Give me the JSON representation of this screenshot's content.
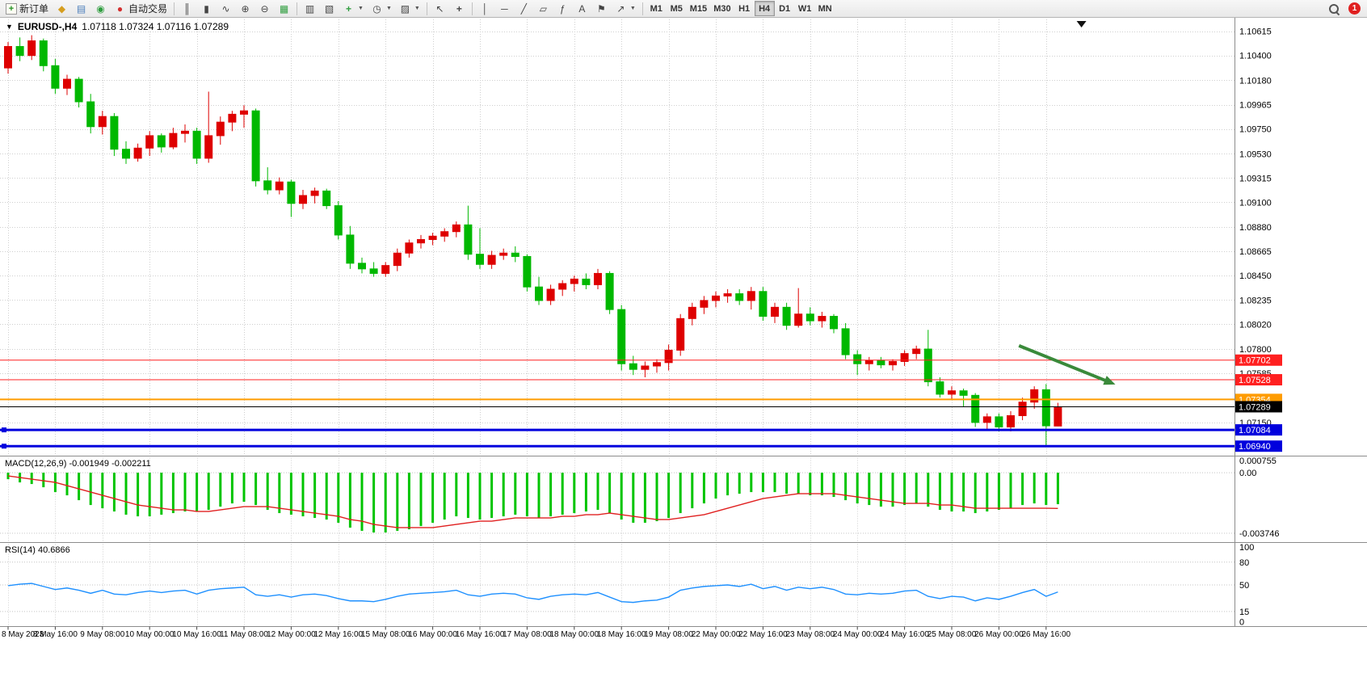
{
  "toolbar": {
    "new_order": "新订单",
    "auto_trading": "自动交易",
    "timeframes": [
      "M1",
      "M5",
      "M15",
      "M30",
      "H1",
      "H4",
      "D1",
      "W1",
      "MN"
    ],
    "active_timeframe": "H4",
    "notification_badge": "1"
  },
  "chart": {
    "symbol_title": "EURUSD-,H4",
    "ohlc_text": "1.07118 1.07324 1.07116 1.07289"
  },
  "indicators": {
    "macd_label": "MACD(12,26,9) -0.001949 -0.002211",
    "rsi_label": "RSI(14) 40.6866"
  },
  "chart_data": {
    "type": "candlestick",
    "symbol": "EURUSD-",
    "timeframe": "H4",
    "current_ohlc": {
      "open": "1.07118",
      "high": "1.07324",
      "low": "1.07116",
      "close": "1.07289"
    },
    "background": "#ffffff",
    "grid_color": "#cfcfcf",
    "up_color": "#de0000",
    "down_color": "#00b800",
    "price_range": {
      "top": 1.1072,
      "bottom": 1.0687
    },
    "y_axis_ticks": [
      "1.10615",
      "1.10400",
      "1.10180",
      "1.09965",
      "1.09750",
      "1.09530",
      "1.09315",
      "1.09100",
      "1.08880",
      "1.08665",
      "1.08450",
      "1.08235",
      "1.08020",
      "1.07800",
      "1.07585",
      "1.07150"
    ],
    "x_axis_labels": [
      "8 May 2023",
      "8 May 16:00",
      "9 May 08:00",
      "10 May 00:00",
      "10 May 16:00",
      "11 May 08:00",
      "12 May 00:00",
      "12 May 16:00",
      "15 May 08:00",
      "16 May 00:00",
      "16 May 16:00",
      "17 May 08:00",
      "18 May 00:00",
      "18 May 16:00",
      "19 May 08:00",
      "22 May 00:00",
      "22 May 16:00",
      "23 May 08:00",
      "24 May 00:00",
      "24 May 16:00",
      "25 May 08:00",
      "26 May 00:00",
      "26 May 16:00"
    ],
    "x_label_candle_step": 4,
    "candles": [
      [
        1.1029,
        1.1052,
        1.1024,
        1.1048
      ],
      [
        1.1048,
        1.1056,
        1.1035,
        1.104
      ],
      [
        1.104,
        1.1058,
        1.1036,
        1.1053
      ],
      [
        1.1053,
        1.1055,
        1.1026,
        1.1031
      ],
      [
        1.1031,
        1.1037,
        1.1006,
        1.1011
      ],
      [
        1.1011,
        1.1023,
        1.1005,
        1.1019
      ],
      [
        1.1019,
        1.1021,
        1.0994,
        1.0999
      ],
      [
        1.0999,
        1.1006,
        1.0971,
        1.0977
      ],
      [
        1.0977,
        1.0991,
        1.097,
        1.0986
      ],
      [
        1.0986,
        1.0989,
        1.0951,
        1.0957
      ],
      [
        1.0957,
        1.0964,
        1.0944,
        1.0949
      ],
      [
        1.0949,
        1.0962,
        1.0946,
        1.0958
      ],
      [
        1.0958,
        1.0973,
        1.0951,
        1.0969
      ],
      [
        1.0969,
        1.0971,
        1.0954,
        1.0959
      ],
      [
        1.0959,
        1.0976,
        1.0957,
        1.0971
      ],
      [
        1.0971,
        1.0979,
        1.0963,
        1.0973
      ],
      [
        1.0973,
        1.0976,
        1.0944,
        1.0949
      ],
      [
        1.0949,
        1.1008,
        1.0945,
        1.0969
      ],
      [
        1.0969,
        1.0986,
        1.0961,
        1.0981
      ],
      [
        1.0981,
        1.0991,
        1.0973,
        1.0988
      ],
      [
        1.0988,
        1.0996,
        1.0976,
        1.0991
      ],
      [
        1.0991,
        1.0993,
        1.0924,
        1.0929
      ],
      [
        1.0929,
        1.0941,
        1.0917,
        1.0921
      ],
      [
        1.0921,
        1.0932,
        1.0917,
        1.0928
      ],
      [
        1.0928,
        1.093,
        1.0897,
        1.0909
      ],
      [
        1.0909,
        1.0921,
        1.0904,
        1.0916
      ],
      [
        1.0916,
        1.0923,
        1.0909,
        1.092
      ],
      [
        1.092,
        1.0922,
        1.0904,
        1.0907
      ],
      [
        1.0907,
        1.0911,
        1.0877,
        1.0881
      ],
      [
        1.0881,
        1.0889,
        1.0851,
        1.0856
      ],
      [
        1.0856,
        1.0861,
        1.0847,
        1.0851
      ],
      [
        1.0851,
        1.0857,
        1.0844,
        1.0847
      ],
      [
        1.0847,
        1.0857,
        1.0844,
        1.0854
      ],
      [
        1.0854,
        1.0869,
        1.0849,
        1.0865
      ],
      [
        1.0865,
        1.0877,
        1.0861,
        1.0874
      ],
      [
        1.0874,
        1.0881,
        1.0869,
        1.0877
      ],
      [
        1.0877,
        1.0883,
        1.0872,
        1.088
      ],
      [
        1.088,
        1.0887,
        1.0875,
        1.0884
      ],
      [
        1.0884,
        1.0893,
        1.0879,
        1.089
      ],
      [
        1.089,
        1.0907,
        1.0859,
        1.0864
      ],
      [
        1.0864,
        1.0887,
        1.0851,
        1.0855
      ],
      [
        1.0855,
        1.0867,
        1.0851,
        1.0863
      ],
      [
        1.0863,
        1.0869,
        1.0859,
        1.0865
      ],
      [
        1.0865,
        1.0871,
        1.0857,
        1.0862
      ],
      [
        1.0862,
        1.0864,
        1.0831,
        1.0835
      ],
      [
        1.0835,
        1.0844,
        1.0819,
        1.0823
      ],
      [
        1.0823,
        1.0837,
        1.0819,
        1.0833
      ],
      [
        1.0833,
        1.0841,
        1.0827,
        1.0838
      ],
      [
        1.0838,
        1.0845,
        1.0831,
        1.0842
      ],
      [
        1.0842,
        1.0847,
        1.0833,
        1.0837
      ],
      [
        1.0837,
        1.0851,
        1.0833,
        1.0847
      ],
      [
        1.0847,
        1.0849,
        1.0811,
        1.0815
      ],
      [
        1.0815,
        1.0819,
        1.0761,
        1.0767
      ],
      [
        1.0767,
        1.0774,
        1.0757,
        1.0762
      ],
      [
        1.0762,
        1.0769,
        1.0755,
        1.0765
      ],
      [
        1.0765,
        1.0771,
        1.0759,
        1.0768
      ],
      [
        1.0768,
        1.0784,
        1.0761,
        1.0779
      ],
      [
        1.0779,
        1.0811,
        1.0774,
        1.0807
      ],
      [
        1.0807,
        1.0821,
        1.0801,
        1.0817
      ],
      [
        1.0817,
        1.0827,
        1.0811,
        1.0823
      ],
      [
        1.0823,
        1.0831,
        1.0817,
        1.0827
      ],
      [
        1.0827,
        1.0833,
        1.0821,
        1.0829
      ],
      [
        1.0829,
        1.0833,
        1.0819,
        1.0823
      ],
      [
        1.0823,
        1.0835,
        1.0815,
        1.0831
      ],
      [
        1.0831,
        1.0835,
        1.0805,
        1.0809
      ],
      [
        1.0809,
        1.0821,
        1.0803,
        1.0817
      ],
      [
        1.0817,
        1.0821,
        1.0797,
        1.0801
      ],
      [
        1.0801,
        1.0834,
        1.0799,
        1.0811
      ],
      [
        1.0811,
        1.0817,
        1.0801,
        1.0805
      ],
      [
        1.0805,
        1.0813,
        1.0799,
        1.0809
      ],
      [
        1.0809,
        1.0811,
        1.0794,
        1.0798
      ],
      [
        1.0798,
        1.0803,
        1.0771,
        1.0775
      ],
      [
        1.0775,
        1.0779,
        1.0757,
        1.0767
      ],
      [
        1.0767,
        1.0773,
        1.0761,
        1.077
      ],
      [
        1.077,
        1.0773,
        1.0763,
        1.0766
      ],
      [
        1.0766,
        1.0771,
        1.0761,
        1.0769
      ],
      [
        1.0769,
        1.0779,
        1.0765,
        1.0776
      ],
      [
        1.0776,
        1.0783,
        1.0771,
        1.078
      ],
      [
        1.078,
        1.0797,
        1.0747,
        1.0751
      ],
      [
        1.0751,
        1.0755,
        1.0737,
        1.074
      ],
      [
        1.074,
        1.0747,
        1.0735,
        1.0743
      ],
      [
        1.0743,
        1.0745,
        1.0729,
        1.0739
      ],
      [
        1.0739,
        1.0741,
        1.0711,
        1.0715
      ],
      [
        1.0715,
        1.0723,
        1.0709,
        1.072
      ],
      [
        1.072,
        1.0723,
        1.0707,
        1.0711
      ],
      [
        1.0711,
        1.0725,
        1.0707,
        1.0721
      ],
      [
        1.0721,
        1.0737,
        1.0717,
        1.0733
      ],
      [
        1.0733,
        1.0747,
        1.0727,
        1.0744
      ],
      [
        1.0744,
        1.0749,
        1.0693,
        1.0712
      ],
      [
        1.07118,
        1.07324,
        1.07116,
        1.07289
      ]
    ],
    "levels": [
      {
        "price": 1.07702,
        "label": "1.07702",
        "color": "#ff2020",
        "width": 1
      },
      {
        "price": 1.07528,
        "label": "1.07528",
        "color": "#ff2020",
        "width": 1
      },
      {
        "price": 1.07354,
        "label": "1.07354",
        "color": "#ff9c00",
        "width": 2
      },
      {
        "price": 1.07289,
        "label": "1.07289",
        "color": "#000000",
        "width": 1
      },
      {
        "price": 1.07084,
        "label": "1.07084",
        "color": "#0000dd",
        "width": 3
      },
      {
        "price": 1.0694,
        "label": "1.06940",
        "color": "#0000dd",
        "width": 3
      }
    ],
    "annotation_arrow": {
      "from_candle": 85.7,
      "from_price": 1.0783,
      "to_candle": 93.3,
      "to_price": 1.0751,
      "color": "#3a8a3a"
    },
    "macd": {
      "hist_color": "#00c400",
      "signal_color": "#e02020",
      "range": {
        "max": 0.000755,
        "min": -0.003746
      },
      "scale": [
        {
          "label": "0.000755",
          "value": 0.000755
        },
        {
          "label": "0.00",
          "value": 0
        },
        {
          "label": "-0.003746",
          "value": -0.003746
        }
      ],
      "level_lines": [
        0,
        -0.003746
      ],
      "histogram": [
        -0.0004,
        -0.0006,
        -0.0007,
        -0.0009,
        -0.0012,
        -0.0014,
        -0.0017,
        -0.002,
        -0.0022,
        -0.0024,
        -0.0026,
        -0.0027,
        -0.0027,
        -0.0026,
        -0.0025,
        -0.0024,
        -0.0024,
        -0.0023,
        -0.0021,
        -0.0019,
        -0.0018,
        -0.002,
        -0.0023,
        -0.0025,
        -0.0026,
        -0.0027,
        -0.0028,
        -0.0029,
        -0.0031,
        -0.0034,
        -0.0036,
        -0.0037,
        -0.0037,
        -0.0036,
        -0.0035,
        -0.0033,
        -0.0031,
        -0.0029,
        -0.0027,
        -0.0028,
        -0.0029,
        -0.0028,
        -0.0027,
        -0.0026,
        -0.0027,
        -0.0028,
        -0.0027,
        -0.0026,
        -0.0025,
        -0.0024,
        -0.0023,
        -0.0025,
        -0.0029,
        -0.0031,
        -0.0031,
        -0.003,
        -0.0028,
        -0.0025,
        -0.0022,
        -0.0019,
        -0.0016,
        -0.0014,
        -0.0013,
        -0.0012,
        -0.0012,
        -0.0012,
        -0.0013,
        -0.0013,
        -0.0014,
        -0.0014,
        -0.0015,
        -0.0017,
        -0.0019,
        -0.002,
        -0.0021,
        -0.0021,
        -0.002,
        -0.0019,
        -0.0021,
        -0.0023,
        -0.0024,
        -0.0024,
        -0.0025,
        -0.0024,
        -0.0023,
        -0.0022,
        -0.002,
        -0.0019,
        -0.002,
        -0.001949
      ],
      "signal": [
        -0.0002,
        -0.0003,
        -0.0004,
        -0.0005,
        -0.0006,
        -0.0008,
        -0.001,
        -0.0012,
        -0.0014,
        -0.0016,
        -0.0018,
        -0.002,
        -0.0021,
        -0.0022,
        -0.0023,
        -0.0023,
        -0.0024,
        -0.0024,
        -0.0023,
        -0.0022,
        -0.0021,
        -0.0021,
        -0.0021,
        -0.0022,
        -0.0023,
        -0.0024,
        -0.0025,
        -0.0026,
        -0.0027,
        -0.0029,
        -0.003,
        -0.0032,
        -0.0033,
        -0.0034,
        -0.0034,
        -0.0034,
        -0.0034,
        -0.0033,
        -0.0032,
        -0.0031,
        -0.003,
        -0.003,
        -0.0029,
        -0.0028,
        -0.0028,
        -0.0028,
        -0.0028,
        -0.0027,
        -0.0027,
        -0.0026,
        -0.0026,
        -0.0025,
        -0.0026,
        -0.0027,
        -0.0028,
        -0.0029,
        -0.0029,
        -0.0028,
        -0.0027,
        -0.0026,
        -0.0024,
        -0.0022,
        -0.002,
        -0.0018,
        -0.0016,
        -0.0015,
        -0.0014,
        -0.0013,
        -0.0013,
        -0.0013,
        -0.0013,
        -0.0014,
        -0.0015,
        -0.0016,
        -0.0017,
        -0.0018,
        -0.0019,
        -0.0019,
        -0.0019,
        -0.002,
        -0.002,
        -0.0021,
        -0.0022,
        -0.0022,
        -0.0022,
        -0.0022,
        -0.0022,
        -0.0022,
        -0.0022,
        -0.002211
      ]
    },
    "rsi": {
      "color": "#1e90ff",
      "current": 40.6866,
      "scale": [
        {
          "label": "100",
          "value": 100
        },
        {
          "label": "80",
          "value": 80
        },
        {
          "label": "50",
          "value": 50
        },
        {
          "label": "15",
          "value": 15
        },
        {
          "label": "0",
          "value": 0
        }
      ],
      "level_lines": [
        80,
        50,
        15
      ],
      "values": [
        49,
        51,
        52,
        48,
        44,
        46,
        43,
        39,
        43,
        38,
        37,
        40,
        42,
        40,
        42,
        43,
        38,
        43,
        45,
        46,
        47,
        37,
        35,
        37,
        34,
        37,
        38,
        36,
        32,
        29,
        29,
        28,
        31,
        35,
        38,
        39,
        40,
        41,
        43,
        37,
        35,
        38,
        39,
        38,
        33,
        31,
        35,
        37,
        38,
        37,
        40,
        34,
        28,
        27,
        29,
        30,
        34,
        43,
        46,
        48,
        49,
        50,
        48,
        51,
        45,
        48,
        43,
        47,
        45,
        47,
        44,
        38,
        37,
        39,
        38,
        39,
        42,
        43,
        35,
        32,
        35,
        34,
        29,
        33,
        31,
        35,
        40,
        44,
        35,
        40.6866
      ]
    }
  }
}
